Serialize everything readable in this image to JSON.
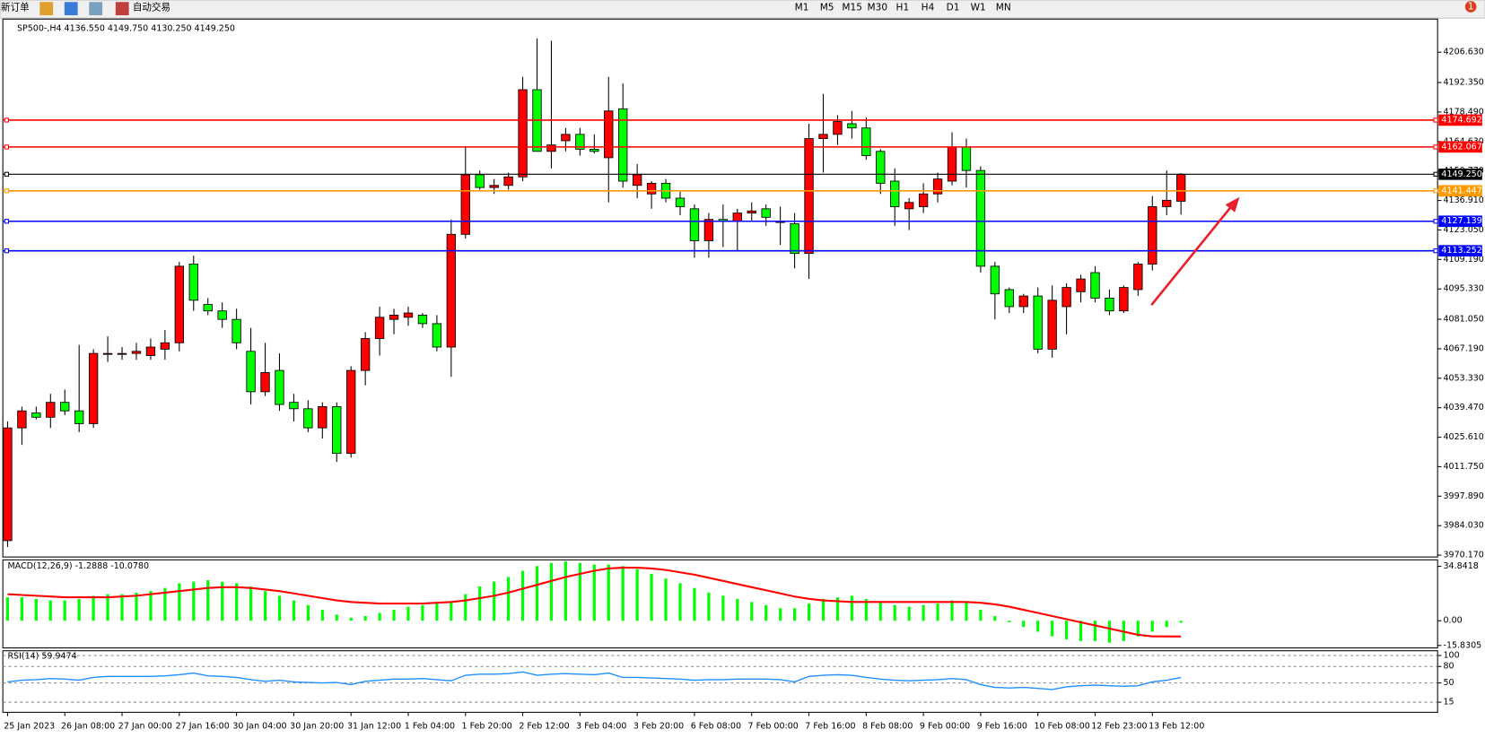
{
  "toolbar": {
    "new_order": "新订单",
    "auto_trading": "自动交易",
    "timeframes": [
      "M1",
      "M5",
      "M15",
      "M30",
      "H1",
      "H4",
      "D1",
      "W1",
      "MN"
    ],
    "badge": "1"
  },
  "chart_data": [
    {
      "type": "candlestick",
      "title": "SP500-,H4  4136.550 4149.750 4130.250 4149.250",
      "up_color": "#ff0000",
      "down_color": "#00ff00",
      "categories": [
        "25 Jan 2023",
        null,
        null,
        null,
        "26 Jan 08:00",
        null,
        null,
        null,
        "27 Jan 00:00",
        null,
        null,
        null,
        "27 Jan 16:00",
        null,
        null,
        null,
        "30 Jan 04:00",
        null,
        null,
        null,
        "30 Jan 20:00",
        null,
        null,
        null,
        "31 Jan 12:00",
        null,
        null,
        null,
        "1 Feb 04:00",
        null,
        null,
        null,
        "1 Feb 20:00",
        null,
        null,
        null,
        "2 Feb 12:00",
        null,
        null,
        null,
        "3 Feb 04:00",
        null,
        null,
        null,
        "3 Feb 20:00",
        null,
        null,
        null,
        "6 Feb 08:00",
        null,
        null,
        null,
        "7 Feb 00:00",
        null,
        null,
        null,
        "7 Feb 16:00",
        null,
        null,
        null,
        "8 Feb 08:00",
        null,
        null,
        null,
        "9 Feb 00:00",
        null,
        null,
        null,
        "9 Feb 16:00",
        null,
        null,
        null,
        "10 Feb 08:00",
        null,
        null,
        null,
        "12 Feb 23:00",
        null,
        null,
        null,
        "13 Feb 12:00",
        null,
        null
      ],
      "open": [
        3977,
        4030,
        4037,
        4035,
        4042,
        4038,
        4032,
        4065,
        4065,
        4065,
        4064,
        4067,
        4070,
        4107,
        4088,
        4085,
        4081,
        4066,
        4047,
        4057,
        4042,
        4039,
        4030,
        4040,
        4018,
        4057,
        4072,
        4081,
        4082,
        4083,
        4079,
        4068,
        4121,
        4149,
        4143,
        4144,
        4148,
        4189,
        4160,
        4165,
        4168,
        4161,
        4157,
        4180,
        4144,
        4140,
        4145,
        4138,
        4133,
        4118,
        4128,
        4127,
        4131,
        4133,
        4127,
        4126,
        4112,
        4166,
        4168,
        4173,
        4171,
        4160,
        4146,
        4133,
        4134,
        4140,
        4146,
        4162,
        4151,
        4106,
        4095,
        4087,
        4092,
        4067,
        4087,
        4094,
        4103,
        4091,
        4085,
        4095,
        4107,
        4134,
        4136.55
      ],
      "high": [
        4033,
        4040,
        4040,
        4046,
        4048,
        4069,
        4067,
        4073,
        4068,
        4070,
        4072,
        4076,
        4108,
        4111,
        4091,
        4089,
        4086,
        4077,
        4070,
        4065,
        4046,
        4043,
        4042,
        4042,
        4059,
        4075,
        4087,
        4086,
        4087,
        4084,
        4083,
        4128,
        4162,
        4151,
        4147,
        4150,
        4195,
        4213,
        4212,
        4171,
        4171,
        4168,
        4195,
        4192,
        4154,
        4146,
        4147,
        4141,
        4135,
        4131,
        4135,
        4133,
        4136,
        4135,
        4134,
        4131,
        4173,
        4187,
        4177,
        4179,
        4176,
        4161,
        4152,
        4138,
        4145,
        4150,
        4169,
        4166,
        4153,
        4108,
        4096,
        4093,
        4096,
        4097,
        4098,
        4102,
        4106,
        4095,
        4097,
        4108,
        4139,
        4151,
        4149.75
      ],
      "low": [
        3974,
        4022,
        4034,
        4030,
        4036,
        4028,
        4030,
        4061,
        4062,
        4062,
        4062,
        4062,
        4066,
        4085,
        4083,
        4077,
        4067,
        4041,
        4045,
        4038,
        4033,
        4028,
        4025,
        4014,
        4016,
        4050,
        4064,
        4074,
        4078,
        4077,
        4066,
        4054,
        4119,
        4142,
        4140,
        4142,
        4146,
        4160,
        4152,
        4160,
        4158,
        4159,
        4136,
        4143,
        4138,
        4133,
        4136,
        4130,
        4110,
        4110,
        4115,
        4113,
        4127,
        4125,
        4116,
        4105,
        4100,
        4150,
        4163,
        4166,
        4156,
        4140,
        4125,
        4123,
        4131,
        4136,
        4144,
        4143,
        4103,
        4081,
        4084,
        4084,
        4065,
        4063,
        4074,
        4089,
        4089,
        4083,
        4084,
        4092,
        4104,
        4130,
        4130.25
      ],
      "close": [
        4030,
        4038,
        4035,
        4042,
        4038,
        4032,
        4065,
        4065,
        4065,
        4066,
        4068,
        4070,
        4106,
        4090,
        4085,
        4081,
        4070,
        4047,
        4056,
        4041,
        4039,
        4030,
        4040,
        4018,
        4057,
        4072,
        4082,
        4083,
        4084,
        4079,
        4068,
        4121,
        4149,
        4143,
        4144,
        4148,
        4189,
        4160,
        4163,
        4168,
        4161,
        4160,
        4179,
        4146,
        4149,
        4145,
        4138,
        4134,
        4118,
        4128,
        4127,
        4131,
        4132,
        4129,
        4127,
        4112,
        4166,
        4168,
        4174,
        4171,
        4158,
        4145,
        4134,
        4136,
        4140,
        4147,
        4162,
        4151,
        4106,
        4093,
        4087,
        4092,
        4067,
        4090,
        4096,
        4100,
        4091,
        4085,
        4096,
        4107,
        4134,
        4137,
        4149.25
      ],
      "ylim": [
        3969.3,
        4222.2
      ],
      "yticks": [
        {
          "value": 4206.63,
          "label": "4206.630"
        },
        {
          "value": 4192.35,
          "label": "4192.350"
        },
        {
          "value": 4178.49,
          "label": "4178.490"
        },
        {
          "value": 4164.63,
          "label": "4164.630"
        },
        {
          "value": 4150.77,
          "label": "4150.770"
        },
        {
          "value": 4136.91,
          "label": "4136.910"
        },
        {
          "value": 4123.05,
          "label": "4123.050"
        },
        {
          "value": 4109.19,
          "label": "4109.190"
        },
        {
          "value": 4095.33,
          "label": "4095.330"
        },
        {
          "value": 4081.05,
          "label": "4081.050"
        },
        {
          "value": 4067.19,
          "label": "4067.190"
        },
        {
          "value": 4053.33,
          "label": "4053.330"
        },
        {
          "value": 4039.47,
          "label": "4039.470"
        },
        {
          "value": 4025.61,
          "label": "4025.610"
        },
        {
          "value": 4011.75,
          "label": "4011.750"
        },
        {
          "value": 3997.89,
          "label": "3997.890"
        },
        {
          "value": 3984.03,
          "label": "3984.030"
        },
        {
          "value": 3970.17,
          "label": "3970.170"
        }
      ],
      "levels": [
        {
          "value": 4174.692,
          "label": "4174.692",
          "color": "#ff0000"
        },
        {
          "value": 4162.067,
          "label": "4162.067",
          "color": "#ff0000"
        },
        {
          "value": 4149.25,
          "label": "4149.250",
          "color": "#000000"
        },
        {
          "value": 4141.447,
          "label": "4141.447",
          "color": "#ff9900"
        },
        {
          "value": 4127.139,
          "label": "4127.139",
          "color": "#0000ff"
        },
        {
          "value": 4113.252,
          "label": "4113.252",
          "color": "#0000ff"
        }
      ]
    },
    {
      "type": "macd",
      "title": "MACD(12,26,9) -1.2888 -10.0780",
      "series": [
        {
          "type": "bar",
          "color": "#00ff00",
          "values": [
            15,
            15,
            14,
            13,
            13,
            14,
            16,
            17,
            17,
            18,
            19,
            21,
            24,
            25,
            26,
            25,
            24,
            22,
            19,
            16,
            13,
            10,
            7,
            4,
            2,
            3,
            5,
            7,
            9,
            10,
            11,
            12,
            17,
            22,
            25,
            28,
            32,
            35,
            37,
            38,
            37,
            36,
            36,
            35,
            33,
            30,
            27,
            24,
            21,
            18,
            16,
            14,
            12,
            10,
            8,
            8,
            11,
            14,
            15,
            16,
            14,
            12,
            10,
            9,
            10,
            11,
            13,
            12,
            7,
            3,
            -1,
            -4,
            -7,
            -10,
            -12,
            -13,
            -13,
            -14,
            -13,
            -10,
            -7,
            -4,
            -1.2888
          ]
        },
        {
          "type": "line",
          "color": "#ff0000",
          "values": [
            17,
            16.5,
            16,
            15.5,
            15,
            15,
            15,
            15,
            15.5,
            16,
            17,
            18,
            19,
            20,
            21,
            21.5,
            21.5,
            21,
            20,
            19,
            17.5,
            16,
            14.5,
            13,
            12,
            11.5,
            11,
            11,
            11,
            11,
            11.5,
            12,
            13,
            14.5,
            16,
            18,
            20.5,
            23,
            25.5,
            28,
            30,
            32,
            33.5,
            34,
            34,
            33.5,
            32.5,
            31,
            29.5,
            27.5,
            25.5,
            23.5,
            21.5,
            19.5,
            17.5,
            15.5,
            14,
            13,
            12.5,
            12,
            12,
            12,
            12,
            12,
            12,
            12,
            12,
            12,
            11.5,
            10.5,
            9,
            7,
            5,
            3,
            1,
            -1,
            -3,
            -5,
            -7,
            -9,
            -10,
            -10,
            -10.078
          ]
        }
      ],
      "ylim": [
        -17.4,
        39.0
      ],
      "yticks": [
        34.8418,
        {
          "value": 0,
          "label": "0.00"
        },
        -15.8305
      ]
    },
    {
      "type": "rsi",
      "title": "RSI(14) 59.9474",
      "series": [
        {
          "type": "line",
          "color": "#1e90ff",
          "values": [
            52,
            55,
            56,
            58,
            57,
            55,
            60,
            62,
            62,
            62,
            62,
            63,
            65,
            68,
            63,
            62,
            60,
            56,
            53,
            55,
            52,
            51,
            50,
            51,
            47,
            53,
            55,
            57,
            57,
            58,
            56,
            54,
            64,
            66,
            66,
            67,
            70,
            64,
            66,
            67,
            66,
            65,
            68,
            60,
            60,
            59,
            58,
            57,
            55,
            56,
            56,
            57,
            57,
            57,
            56,
            52,
            62,
            64,
            65,
            64,
            60,
            57,
            55,
            54,
            55,
            56,
            58,
            56,
            47,
            42,
            41,
            42,
            40,
            38,
            43,
            45,
            46,
            45,
            44,
            45,
            52,
            55,
            59.9474
          ]
        }
      ],
      "ylim": [
        0,
        100
      ],
      "yticks": [
        100,
        80,
        50,
        15
      ]
    }
  ]
}
